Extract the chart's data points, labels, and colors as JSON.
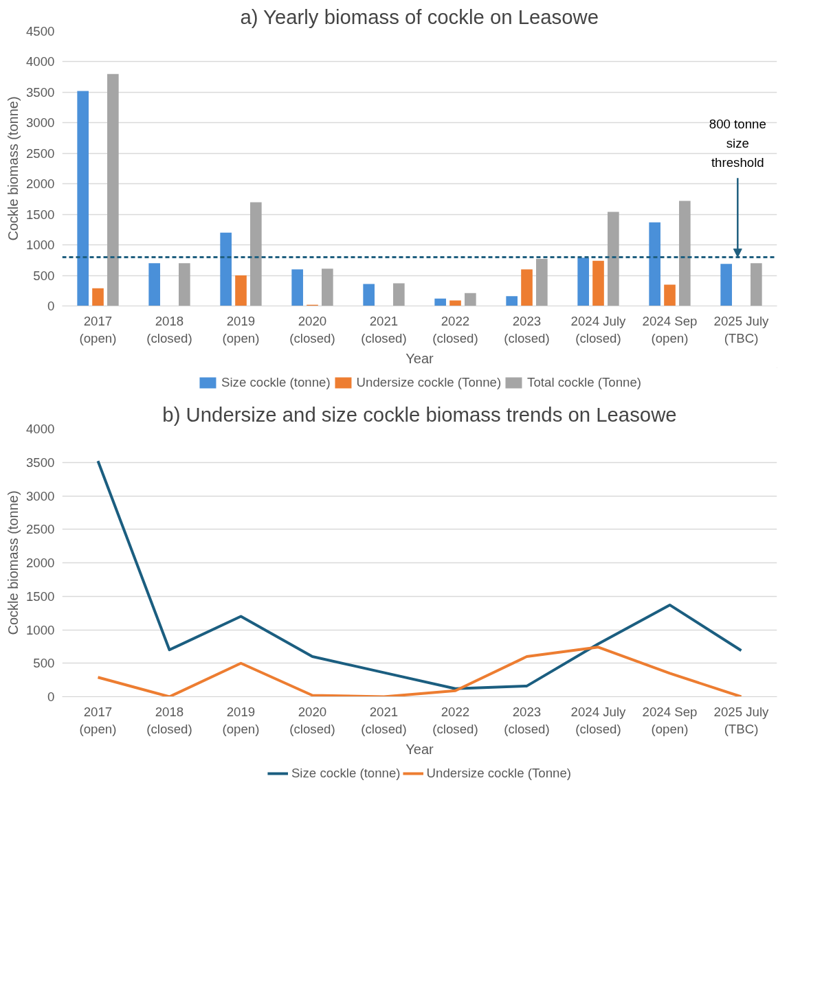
{
  "chart_data": [
    {
      "type": "bar",
      "title": "a) Yearly biomass of cockle on Leasowe",
      "xlabel": "Year",
      "ylabel": "Cockle biomass (tonne)",
      "categories": [
        "2017\n(open)",
        "2018\n(closed)",
        "2019\n(open)",
        "2020\n(closed)",
        "2021\n(closed)",
        "2022\n(closed)",
        "2023\n(closed)",
        "2024 July\n(closed)",
        "2024 Sep\n(open)",
        "2025 July\n(TBC)"
      ],
      "series": [
        {
          "name": "Size cockle (tonne)",
          "color": "#4a90d9",
          "values": [
            3520,
            700,
            1200,
            600,
            360,
            120,
            160,
            790,
            1370,
            690
          ]
        },
        {
          "name": "Undersize cockle (Tonne)",
          "color": "#ed7d31",
          "values": [
            290,
            0,
            500,
            20,
            0,
            90,
            600,
            740,
            350,
            0
          ]
        },
        {
          "name": "Total cockle (Tonne)",
          "color": "#a5a5a5",
          "values": [
            3800,
            700,
            1700,
            610,
            370,
            210,
            770,
            1540,
            1720,
            700
          ]
        }
      ],
      "ylim": [
        0,
        4500
      ],
      "yticks": [
        0,
        500,
        1000,
        1500,
        2000,
        2500,
        3000,
        3500,
        4000,
        4500
      ],
      "grid": "y",
      "legend": "bottom",
      "ref_lines": [
        {
          "axis": "y",
          "value": 800,
          "label": "800 tonne\nsize\nthreshold",
          "color": "#1f5f7f",
          "line_style": "dashed"
        }
      ]
    },
    {
      "type": "line",
      "title": "b) Undersize and size cockle biomass trends on Leasowe",
      "xlabel": "Year",
      "ylabel": "Cockle biomass (tonne)",
      "categories": [
        "2017\n(open)",
        "2018\n(closed)",
        "2019\n(open)",
        "2020\n(closed)",
        "2021\n(closed)",
        "2022\n(closed)",
        "2023\n(closed)",
        "2024 July\n(closed)",
        "2024 Sep\n(open)",
        "2025 July\n(TBC)"
      ],
      "series": [
        {
          "name": "Size cockle (tonne)",
          "color": "#1b5e80",
          "values": [
            3520,
            700,
            1200,
            600,
            360,
            120,
            160,
            790,
            1370,
            690
          ]
        },
        {
          "name": "Undersize cockle (Tonne)",
          "color": "#ed7d31",
          "values": [
            290,
            0,
            500,
            20,
            0,
            90,
            600,
            740,
            350,
            0
          ]
        }
      ],
      "ylim": [
        0,
        4000
      ],
      "yticks": [
        0,
        500,
        1000,
        1500,
        2000,
        2500,
        3000,
        3500,
        4000
      ],
      "grid": "y",
      "legend": "bottom",
      "line_style": "solid",
      "marker": "none"
    }
  ]
}
